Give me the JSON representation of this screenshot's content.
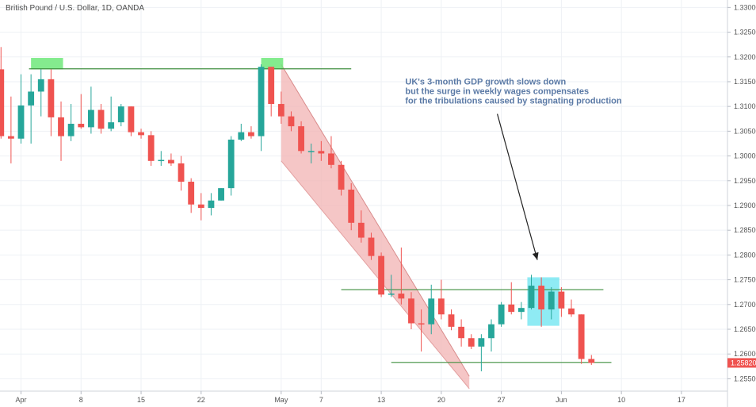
{
  "chart_data": {
    "type": "candlestick",
    "title": "British Pound / U.S. Dollar, 1D, OANDA",
    "colors": {
      "up": "#26a69a",
      "down": "#ef5350",
      "grid": "#eef1f5",
      "support_line": "#3f8f3f",
      "channel_fill": "#f2b3b3",
      "green_highlight": "#6ee77a",
      "cyan_highlight": "#5fe3ef",
      "price_label_bg": "#ef5350"
    },
    "x_ticks": [
      {
        "index": 1,
        "label": "Apr"
      },
      {
        "index": 4,
        "label": "8"
      },
      {
        "index": 7,
        "label": "15"
      },
      {
        "index": 10,
        "label": "22"
      },
      {
        "index": 14,
        "label": "May"
      },
      {
        "index": 16,
        "label": "7"
      },
      {
        "index": 19,
        "label": "13"
      },
      {
        "index": 22,
        "label": "20"
      },
      {
        "index": 25,
        "label": "27"
      },
      {
        "index": 28,
        "label": "Jun"
      },
      {
        "index": 31,
        "label": "10"
      },
      {
        "index": 34,
        "label": "17"
      }
    ],
    "y_ticks": [
      "1.25500",
      "1.26000",
      "1.26500",
      "1.27000",
      "1.27500",
      "1.28000",
      "1.28500",
      "1.29000",
      "1.29500",
      "1.30000",
      "1.30500",
      "1.31000",
      "1.31500",
      "1.32000",
      "1.32500",
      "1.33000"
    ],
    "ylim": [
      1.2525,
      1.3315
    ],
    "x_domain": [
      -0.05,
      36.3
    ],
    "last_price": "1.25820",
    "candles": [
      {
        "o": 1.3175,
        "h": 1.322,
        "l": 1.3035,
        "c": 1.304
      },
      {
        "o": 1.304,
        "h": 1.312,
        "l": 1.2985,
        "c": 1.3035
      },
      {
        "o": 1.3035,
        "h": 1.3165,
        "l": 1.3025,
        "c": 1.3102
      },
      {
        "o": 1.3102,
        "h": 1.3165,
        "l": 1.3025,
        "c": 1.313
      },
      {
        "o": 1.313,
        "h": 1.3175,
        "l": 1.308,
        "c": 1.3155
      },
      {
        "o": 1.3155,
        "h": 1.3175,
        "l": 1.304,
        "c": 1.3078
      },
      {
        "o": 1.3078,
        "h": 1.311,
        "l": 1.299,
        "c": 1.304
      },
      {
        "o": 1.304,
        "h": 1.3105,
        "l": 1.303,
        "c": 1.3065
      },
      {
        "o": 1.3065,
        "h": 1.3125,
        "l": 1.3055,
        "c": 1.3058
      },
      {
        "o": 1.3058,
        "h": 1.314,
        "l": 1.3045,
        "c": 1.3093
      },
      {
        "o": 1.3093,
        "h": 1.3105,
        "l": 1.3045,
        "c": 1.3055
      },
      {
        "o": 1.3055,
        "h": 1.312,
        "l": 1.305,
        "c": 1.3068
      },
      {
        "o": 1.3068,
        "h": 1.3105,
        "l": 1.306,
        "c": 1.31
      },
      {
        "o": 1.31,
        "h": 1.31,
        "l": 1.304,
        "c": 1.3048
      },
      {
        "o": 1.3048,
        "h": 1.3055,
        "l": 1.3035,
        "c": 1.3042
      },
      {
        "o": 1.3042,
        "h": 1.305,
        "l": 1.298,
        "c": 1.299
      },
      {
        "o": 1.299,
        "h": 1.301,
        "l": 1.298,
        "c": 1.2992
      },
      {
        "o": 1.2992,
        "h": 1.3005,
        "l": 1.298,
        "c": 1.2985
      },
      {
        "o": 1.2985,
        "h": 1.3,
        "l": 1.293,
        "c": 1.2948
      },
      {
        "o": 1.2948,
        "h": 1.2955,
        "l": 1.2885,
        "c": 1.2902
      },
      {
        "o": 1.2902,
        "h": 1.2925,
        "l": 1.287,
        "c": 1.2895
      },
      {
        "o": 1.2895,
        "h": 1.2925,
        "l": 1.288,
        "c": 1.291
      },
      {
        "o": 1.291,
        "h": 1.2935,
        "l": 1.291,
        "c": 1.2935
      },
      {
        "o": 1.2935,
        "h": 1.304,
        "l": 1.292,
        "c": 1.3033
      },
      {
        "o": 1.3033,
        "h": 1.3065,
        "l": 1.303,
        "c": 1.3048
      },
      {
        "o": 1.3048,
        "h": 1.306,
        "l": 1.3035,
        "c": 1.304
      },
      {
        "o": 1.304,
        "h": 1.3185,
        "l": 1.301,
        "c": 1.318
      },
      {
        "o": 1.318,
        "h": 1.318,
        "l": 1.308,
        "c": 1.3105
      },
      {
        "o": 1.3105,
        "h": 1.313,
        "l": 1.3065,
        "c": 1.308
      },
      {
        "o": 1.308,
        "h": 1.309,
        "l": 1.305,
        "c": 1.306
      },
      {
        "o": 1.306,
        "h": 1.307,
        "l": 1.3005,
        "c": 1.301
      },
      {
        "o": 1.301,
        "h": 1.3025,
        "l": 1.2985,
        "c": 1.301
      },
      {
        "o": 1.301,
        "h": 1.303,
        "l": 1.299,
        "c": 1.3005
      },
      {
        "o": 1.3005,
        "h": 1.304,
        "l": 1.2975,
        "c": 1.2982
      },
      {
        "o": 1.2982,
        "h": 1.299,
        "l": 1.292,
        "c": 1.2932
      },
      {
        "o": 1.2932,
        "h": 1.2945,
        "l": 1.285,
        "c": 1.2865
      },
      {
        "o": 1.2865,
        "h": 1.289,
        "l": 1.2825,
        "c": 1.2835
      },
      {
        "o": 1.2835,
        "h": 1.2845,
        "l": 1.279,
        "c": 1.2798
      },
      {
        "o": 1.2798,
        "h": 1.2805,
        "l": 1.2715,
        "c": 1.272
      },
      {
        "o": 1.272,
        "h": 1.276,
        "l": 1.2715,
        "c": 1.2722
      },
      {
        "o": 1.2722,
        "h": 1.2815,
        "l": 1.27,
        "c": 1.2712
      },
      {
        "o": 1.2712,
        "h": 1.2725,
        "l": 1.265,
        "c": 1.2662
      },
      {
        "o": 1.2662,
        "h": 1.269,
        "l": 1.2605,
        "c": 1.266
      },
      {
        "o": 1.266,
        "h": 1.274,
        "l": 1.264,
        "c": 1.2712
      },
      {
        "o": 1.2712,
        "h": 1.275,
        "l": 1.267,
        "c": 1.268
      },
      {
        "o": 1.268,
        "h": 1.269,
        "l": 1.2648,
        "c": 1.2655
      },
      {
        "o": 1.2655,
        "h": 1.267,
        "l": 1.2615,
        "c": 1.2632
      },
      {
        "o": 1.2632,
        "h": 1.264,
        "l": 1.261,
        "c": 1.2615
      },
      {
        "o": 1.2615,
        "h": 1.264,
        "l": 1.2565,
        "c": 1.2632
      },
      {
        "o": 1.2632,
        "h": 1.267,
        "l": 1.2605,
        "c": 1.266
      },
      {
        "o": 1.266,
        "h": 1.2705,
        "l": 1.2655,
        "c": 1.27
      },
      {
        "o": 1.27,
        "h": 1.2745,
        "l": 1.268,
        "c": 1.2685
      },
      {
        "o": 1.2685,
        "h": 1.2705,
        "l": 1.267,
        "c": 1.2693
      },
      {
        "o": 1.2693,
        "h": 1.276,
        "l": 1.269,
        "c": 1.2738
      },
      {
        "o": 1.2738,
        "h": 1.2755,
        "l": 1.2655,
        "c": 1.269
      },
      {
        "o": 1.269,
        "h": 1.2735,
        "l": 1.267,
        "c": 1.2726
      },
      {
        "o": 1.2726,
        "h": 1.2735,
        "l": 1.2675,
        "c": 1.2692
      },
      {
        "o": 1.2692,
        "h": 1.271,
        "l": 1.2675,
        "c": 1.268
      },
      {
        "o": 1.268,
        "h": 1.268,
        "l": 1.258,
        "c": 1.259
      },
      {
        "o": 1.259,
        "h": 1.2598,
        "l": 1.2578,
        "c": 1.2582
      }
    ],
    "day_index": [
      0,
      0.5,
      1,
      1.5,
      2,
      2.5,
      3,
      3.5,
      4,
      4.5,
      5,
      5.5,
      6,
      6.5,
      7,
      7.5,
      8,
      8.5,
      9,
      9.5,
      10,
      10.5,
      11,
      11.5,
      12,
      12.5,
      13,
      13.5,
      14,
      14.5,
      15,
      15.5,
      16,
      16.5,
      17,
      17.5,
      18,
      18.5,
      19,
      19.5,
      20,
      20.5,
      21,
      21.5,
      22,
      22.5,
      23,
      23.5,
      24,
      24.5,
      25,
      25.5,
      26,
      26.5,
      27,
      27.5,
      28,
      28.5,
      29,
      29.5
    ],
    "horizontal_lines": [
      {
        "x0": 1.4,
        "x1": 17.5,
        "y": 1.3176
      },
      {
        "x0": 17.0,
        "x1": 30.1,
        "y": 1.273
      },
      {
        "x0": 19.5,
        "x1": 30.5,
        "y": 1.2583
      }
    ],
    "highlight_boxes": [
      {
        "x0": 1.5,
        "x1": 3.1,
        "y0": 1.3175,
        "y1": 1.3198,
        "color": "green"
      },
      {
        "x0": 13.0,
        "x1": 14.1,
        "y0": 1.3175,
        "y1": 1.3198,
        "color": "green"
      },
      {
        "x0": 26.3,
        "x1": 27.9,
        "y0": 1.2657,
        "y1": 1.2755,
        "color": "cyan"
      }
    ],
    "channel": {
      "points": [
        [
          14.0,
          1.3185
        ],
        [
          14.0,
          1.299
        ],
        [
          23.4,
          1.253
        ],
        [
          23.4,
          1.2555
        ]
      ],
      "upper_line_end": [
        23.4,
        1.2555
      ]
    },
    "annotation": {
      "lines": [
        "UK's 3-month GDP growth slows down",
        "but the surge in weekly wages compensates",
        "for the tribulations caused by stagnating production"
      ],
      "arrow_from": [
        24.8,
        1.3085
      ],
      "arrow_to": [
        26.8,
        1.279
      ],
      "text_anchor": [
        20.2,
        1.3144
      ]
    }
  }
}
